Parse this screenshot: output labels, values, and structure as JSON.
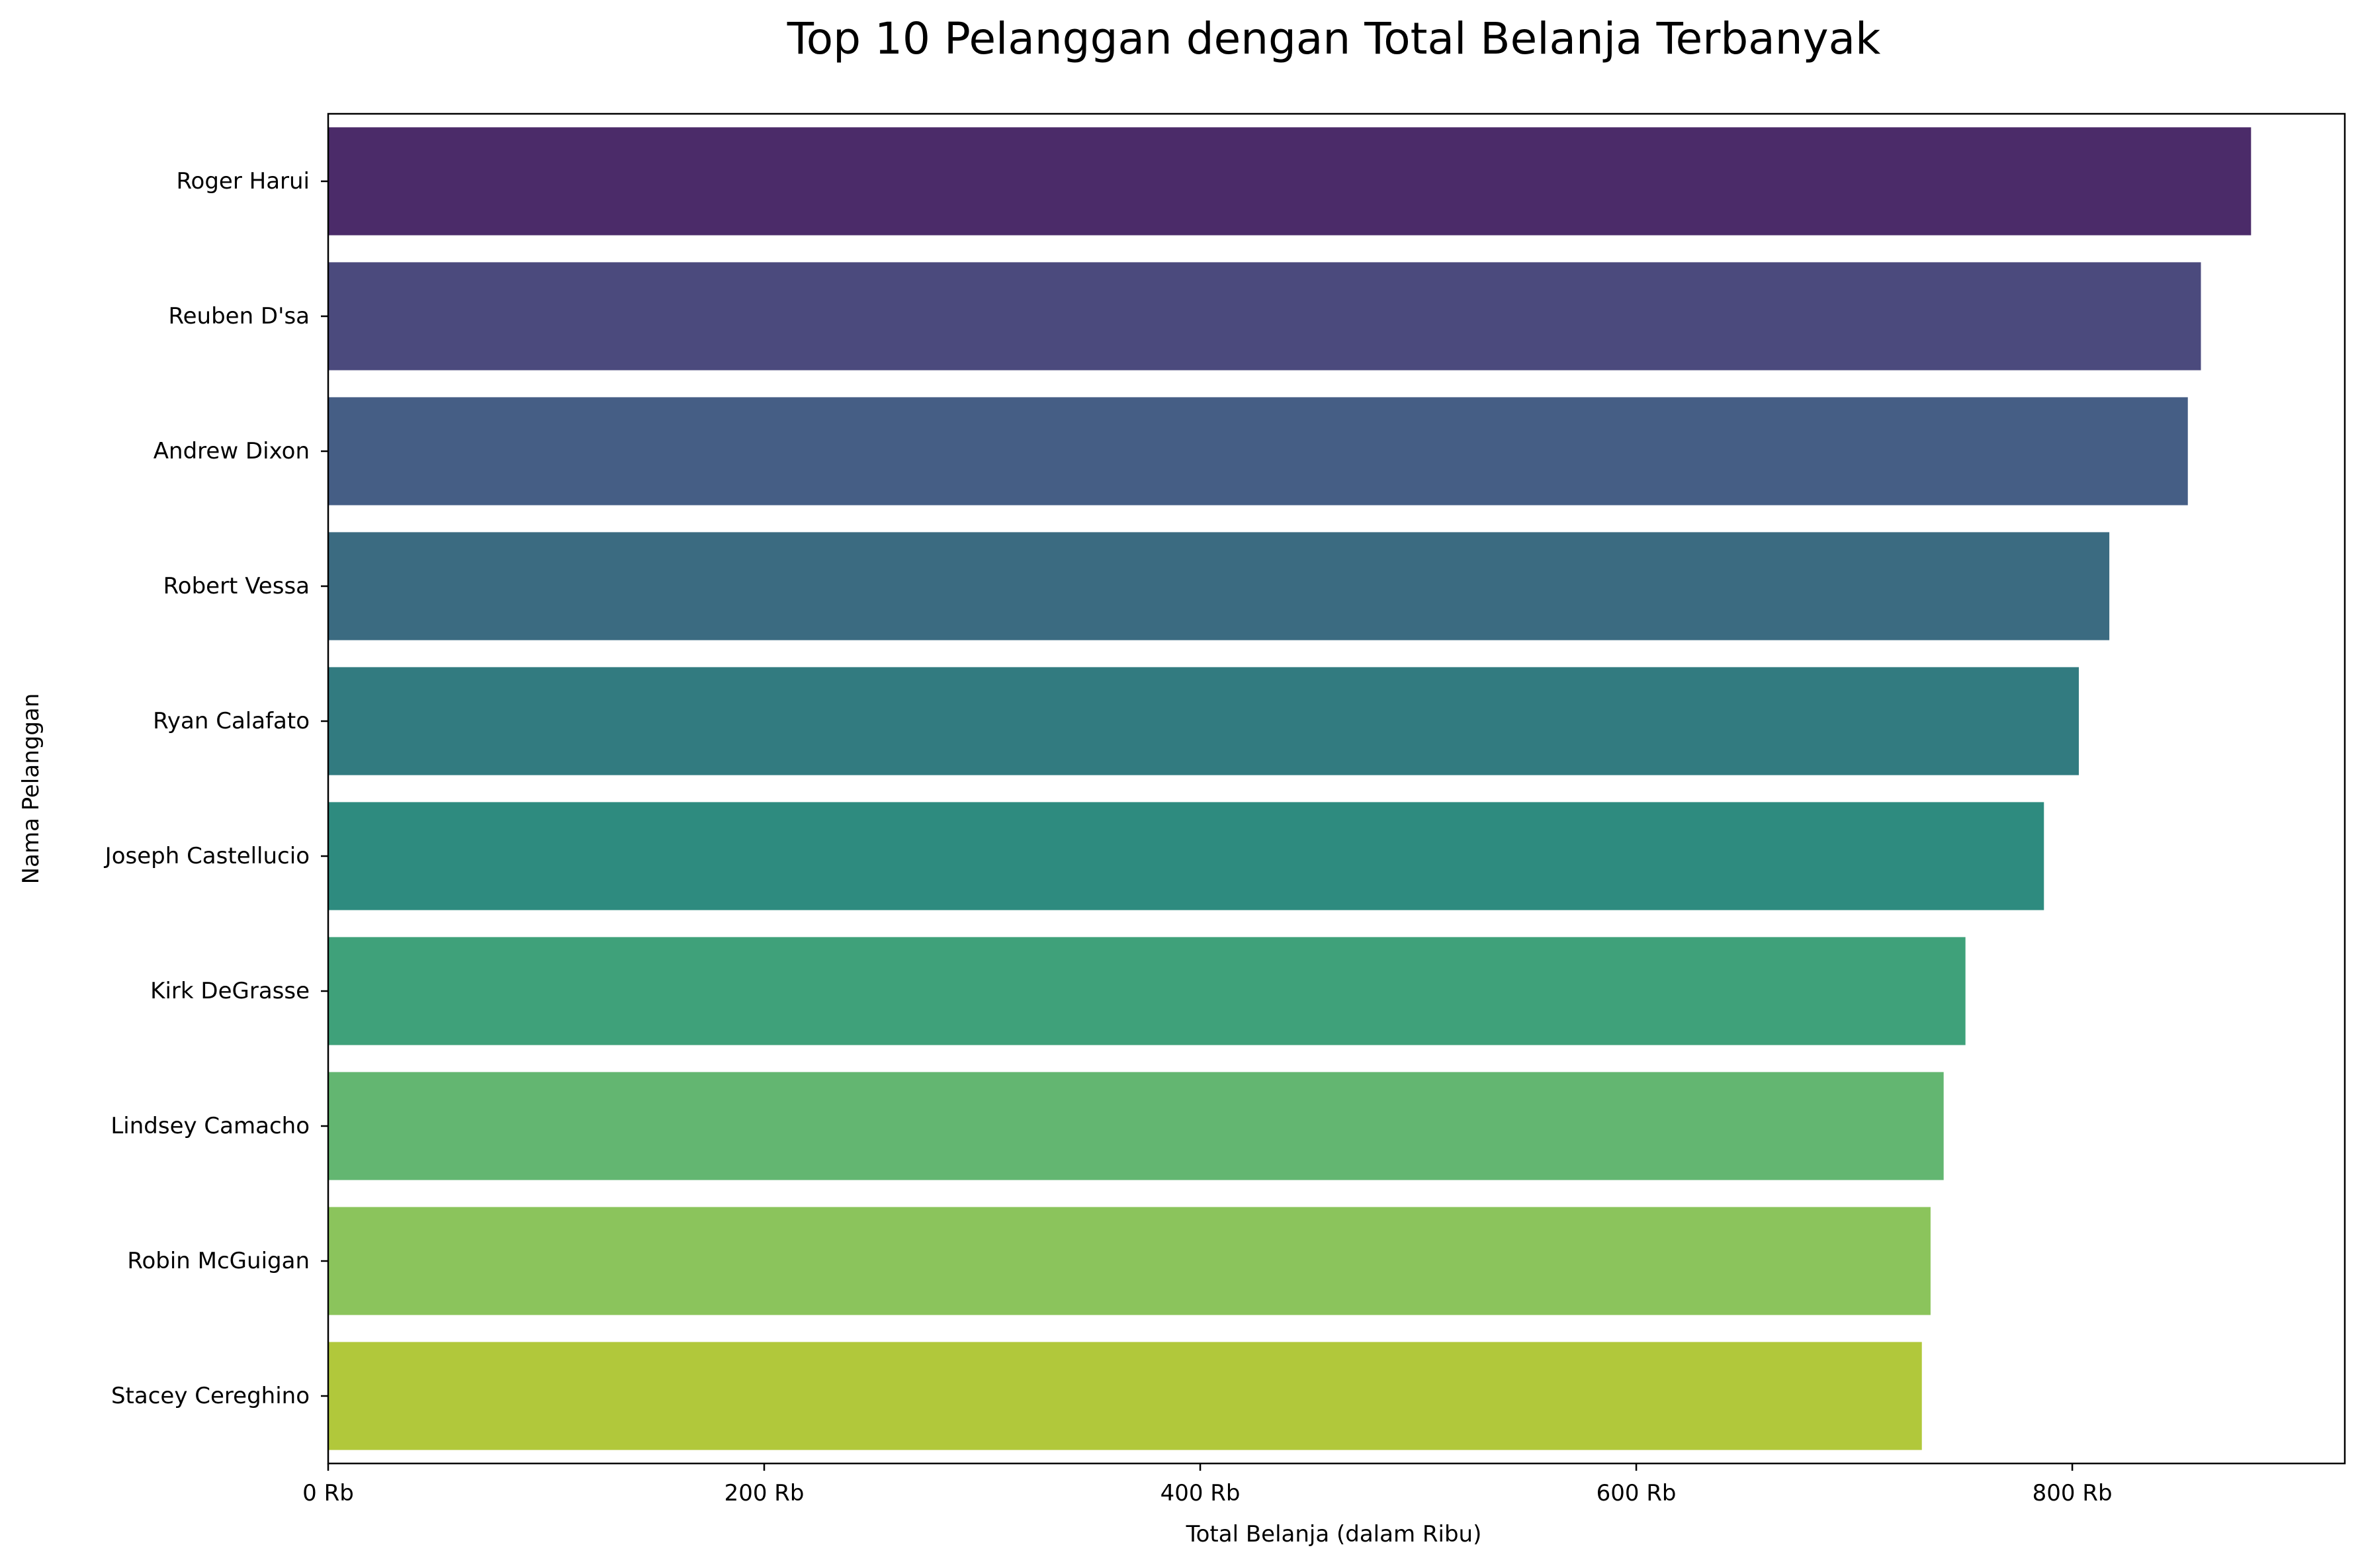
{
  "chart_data": {
    "type": "bar",
    "orientation": "horizontal",
    "title": "Top 10 Pelanggan dengan Total Belanja Terbanyak",
    "xlabel": "Total Belanja (dalam Ribu)",
    "ylabel": "Nama Pelanggan",
    "xlim": [
      0,
      925
    ],
    "x_ticks": [
      0,
      200,
      400,
      600,
      800
    ],
    "x_tick_labels": [
      "0 Rb",
      "200 Rb",
      "400 Rb",
      "600 Rb",
      "800 Rb"
    ],
    "grid": false,
    "legend": "none",
    "categories": [
      "Roger Harui",
      "Reuben D'sa",
      "Andrew Dixon",
      "Robert Vessa",
      "Ryan Calafato",
      "Joseph Castellucio",
      "Kirk DeGrasse",
      "Lindsey Camacho",
      "Robin McGuigan",
      "Stacey Cereghino"
    ],
    "values": [
      882,
      859,
      853,
      817,
      803,
      787,
      751,
      741,
      735,
      731
    ],
    "colors": [
      "#4b2b69",
      "#4b4a7d",
      "#455e85",
      "#3b6b81",
      "#327b80",
      "#2e8b7f",
      "#3fa17a",
      "#63b671",
      "#8bc45c",
      "#b1c83b"
    ]
  }
}
